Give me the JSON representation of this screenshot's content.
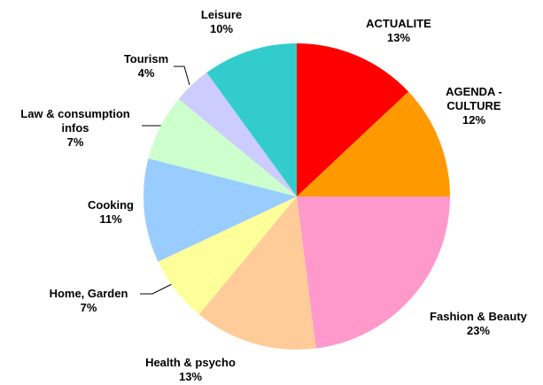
{
  "chart_data": {
    "type": "pie",
    "categories": [
      "ACTUALITE",
      "AGENDA - CULTURE",
      "Fashion & Beauty",
      "Health & psycho",
      "Home, Garden",
      "Cooking",
      "Law & consumption infos",
      "Tourism",
      "Leisure"
    ],
    "values": [
      13,
      12,
      23,
      13,
      7,
      11,
      7,
      4,
      10
    ],
    "value_labels": [
      "13%",
      "12%",
      "23%",
      "13%",
      "7%",
      "11%",
      "7%",
      "4%",
      "10%"
    ],
    "colors": [
      "#ff0000",
      "#ff9900",
      "#ff99cc",
      "#ffcc99",
      "#ffff99",
      "#99ccff",
      "#ccffcc",
      "#ccccff",
      "#33cccc"
    ]
  }
}
